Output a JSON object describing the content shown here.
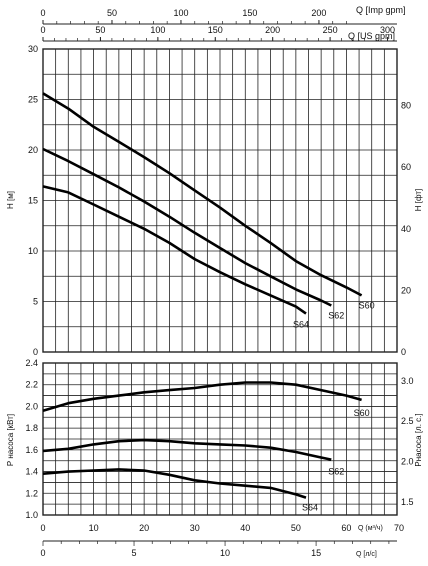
{
  "chart_data": [
    {
      "type": "line",
      "title": "",
      "ylabel": "H [м]",
      "ylabel_right": "H [фт]",
      "xlabel": "Q [м³/ч]",
      "xlim": [
        0,
        70
      ],
      "ylim": [
        0,
        30
      ],
      "ylim_right": [
        0,
        98.4
      ],
      "yticks": [
        "0",
        "5",
        "10",
        "15",
        "20",
        "25",
        "30"
      ],
      "yticks_right": [
        "0",
        "20",
        "40",
        "60",
        "80"
      ],
      "grid": true,
      "series": [
        {
          "name": "S60",
          "x": [
            0,
            5,
            10,
            15,
            20,
            25,
            30,
            35,
            40,
            45,
            50,
            55,
            60,
            63
          ],
          "y": [
            25.6,
            24.1,
            22.3,
            20.8,
            19.3,
            17.7,
            16.0,
            14.3,
            12.5,
            10.8,
            9.0,
            7.6,
            6.4,
            5.6
          ]
        },
        {
          "name": "S62",
          "x": [
            0,
            5,
            10,
            15,
            20,
            25,
            30,
            35,
            40,
            45,
            50,
            55,
            57
          ],
          "y": [
            20.1,
            18.9,
            17.6,
            16.3,
            14.9,
            13.4,
            11.8,
            10.3,
            8.8,
            7.5,
            6.2,
            5.1,
            4.6
          ]
        },
        {
          "name": "S64",
          "x": [
            0,
            5,
            10,
            15,
            20,
            25,
            30,
            35,
            40,
            45,
            50,
            52
          ],
          "y": [
            16.4,
            15.8,
            14.6,
            13.4,
            12.2,
            10.8,
            9.2,
            7.9,
            6.7,
            5.6,
            4.5,
            3.8
          ]
        }
      ]
    },
    {
      "type": "line",
      "title": "",
      "ylabel": "P насоса [кВт]",
      "ylabel_right": "Pнасоса [л. с.]",
      "xlabel": "Q [м³/ч]",
      "xlim": [
        0,
        70
      ],
      "ylim": [
        1.0,
        2.4
      ],
      "ylim_right": [
        1.34,
        3.22
      ],
      "yticks": [
        "1.0",
        "1.2",
        "1.4",
        "1.6",
        "1.8",
        "2.0",
        "2.2",
        "2.4"
      ],
      "yticks_right": [
        "1.5",
        "2.0",
        "2.5",
        "3.0"
      ],
      "grid": true,
      "series": [
        {
          "name": "S60",
          "x": [
            0,
            5,
            10,
            15,
            20,
            25,
            30,
            35,
            40,
            45,
            50,
            55,
            60,
            63
          ],
          "y": [
            1.96,
            2.03,
            2.07,
            2.1,
            2.13,
            2.15,
            2.17,
            2.2,
            2.22,
            2.22,
            2.2,
            2.15,
            2.1,
            2.06
          ]
        },
        {
          "name": "S62",
          "x": [
            0,
            5,
            10,
            15,
            20,
            25,
            30,
            35,
            40,
            45,
            50,
            55,
            57
          ],
          "y": [
            1.59,
            1.61,
            1.65,
            1.68,
            1.69,
            1.68,
            1.66,
            1.65,
            1.64,
            1.62,
            1.58,
            1.53,
            1.51
          ]
        },
        {
          "name": "S64",
          "x": [
            0,
            5,
            10,
            15,
            20,
            25,
            30,
            35,
            40,
            45,
            50,
            52
          ],
          "y": [
            1.38,
            1.4,
            1.41,
            1.42,
            1.41,
            1.37,
            1.32,
            1.29,
            1.27,
            1.25,
            1.19,
            1.16
          ]
        }
      ]
    }
  ],
  "axes": {
    "imp_gpm": {
      "label": "Q [Imp gpm]",
      "ticks": [
        "0",
        "50",
        "100",
        "150",
        "200"
      ],
      "values": [
        0,
        50,
        100,
        150,
        200
      ],
      "m3h_per_unit": 0.2728
    },
    "us_gpm": {
      "label": "Q [US gpm]",
      "ticks": [
        "0",
        "50",
        "100",
        "150",
        "200",
        "250",
        "300"
      ],
      "values": [
        0,
        50,
        100,
        150,
        200,
        250,
        300
      ],
      "m3h_per_unit": 0.2271
    },
    "m3h": {
      "label": "Q (м³/ч)",
      "ticks": [
        "0",
        "10",
        "20",
        "30",
        "40",
        "50",
        "60",
        "70"
      ],
      "values": [
        0,
        10,
        20,
        30,
        40,
        50,
        60,
        70
      ]
    },
    "ls": {
      "label": "Q [л/с]",
      "ticks": [
        "0",
        "5",
        "10",
        "15"
      ],
      "values": [
        0,
        5,
        10,
        15
      ],
      "m3h_per_unit": 3.6
    }
  },
  "colors": {
    "grid": "#222222",
    "curve": "#000000",
    "text": "#111111"
  }
}
